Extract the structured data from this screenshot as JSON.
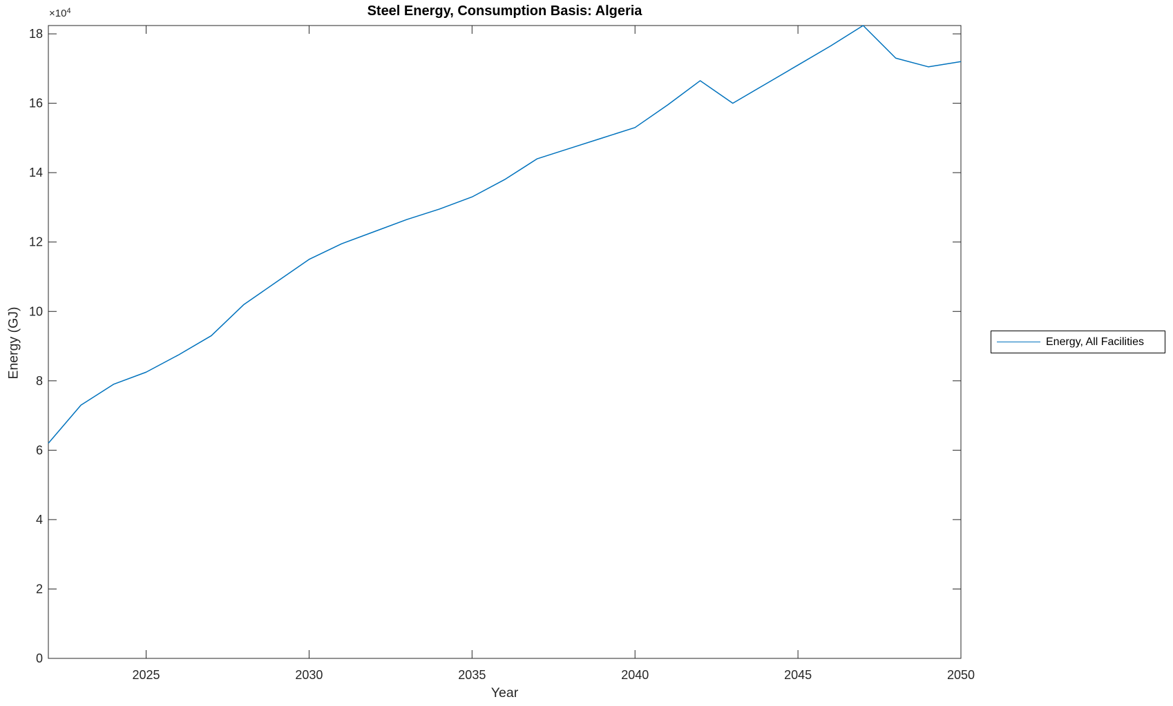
{
  "chart": {
    "y_exponent_base": "×10",
    "y_exponent_power": "4"
  },
  "chart_data": {
    "type": "line",
    "title": "Steel Energy, Consumption Basis: Algeria",
    "xlabel": "Year",
    "ylabel": "Energy (GJ)",
    "y_scale_note": "y tick values are in units of 10^4 GJ",
    "x": [
      2022,
      2023,
      2024,
      2025,
      2026,
      2027,
      2028,
      2029,
      2030,
      2031,
      2032,
      2033,
      2034,
      2035,
      2036,
      2037,
      2038,
      2039,
      2040,
      2041,
      2042,
      2043,
      2044,
      2045,
      2046,
      2047,
      2048,
      2049,
      2050
    ],
    "series": [
      {
        "name": "Energy, All Facilities",
        "color": "#0072BD",
        "values": [
          62000,
          73000,
          79000,
          82500,
          87500,
          93000,
          102000,
          108500,
          115000,
          119500,
          123000,
          126500,
          129500,
          133000,
          138000,
          144000,
          147000,
          150000,
          153000,
          159500,
          166500,
          160000,
          165500,
          171000,
          176500,
          182400,
          173000,
          170500,
          172000
        ]
      }
    ],
    "xlim": [
      2022,
      2050
    ],
    "ylim": [
      0,
      182400
    ],
    "xticks": [
      2025,
      2030,
      2035,
      2040,
      2045,
      2050
    ],
    "xtick_labels": [
      "2025",
      "2030",
      "2035",
      "2040",
      "2045",
      "2050"
    ],
    "yticks": [
      0,
      20000,
      40000,
      60000,
      80000,
      100000,
      120000,
      140000,
      160000,
      180000
    ],
    "ytick_labels": [
      "0",
      "2",
      "4",
      "6",
      "8",
      "10",
      "12",
      "14",
      "16",
      "18"
    ],
    "grid": false,
    "legend_position": "outside-right",
    "axis_color": "#262626"
  }
}
